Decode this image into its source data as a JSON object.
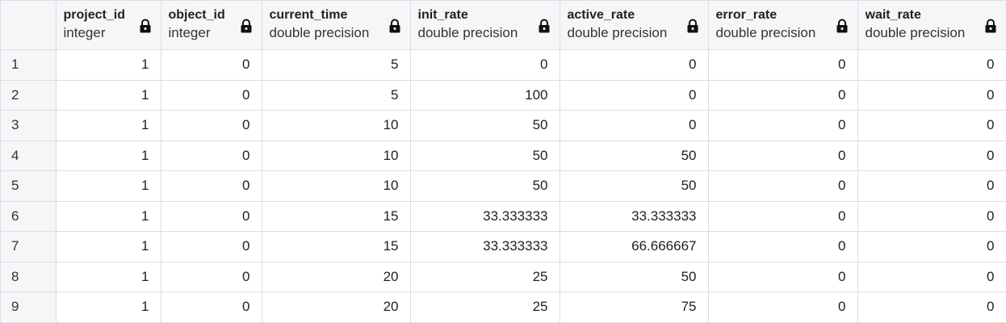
{
  "columns": [
    {
      "name": "project_id",
      "type": "integer"
    },
    {
      "name": "object_id",
      "type": "integer"
    },
    {
      "name": "current_time",
      "type": "double precision"
    },
    {
      "name": "init_rate",
      "type": "double precision"
    },
    {
      "name": "active_rate",
      "type": "double precision"
    },
    {
      "name": "error_rate",
      "type": "double precision"
    },
    {
      "name": "wait_rate",
      "type": "double precision"
    }
  ],
  "rows": [
    {
      "num": "1",
      "cells": [
        "1",
        "0",
        "5",
        "0",
        "0",
        "0",
        "0"
      ]
    },
    {
      "num": "2",
      "cells": [
        "1",
        "0",
        "5",
        "100",
        "0",
        "0",
        "0"
      ]
    },
    {
      "num": "3",
      "cells": [
        "1",
        "0",
        "10",
        "50",
        "0",
        "0",
        "0"
      ]
    },
    {
      "num": "4",
      "cells": [
        "1",
        "0",
        "10",
        "50",
        "50",
        "0",
        "0"
      ]
    },
    {
      "num": "5",
      "cells": [
        "1",
        "0",
        "10",
        "50",
        "50",
        "0",
        "0"
      ]
    },
    {
      "num": "6",
      "cells": [
        "1",
        "0",
        "15",
        "33.333333",
        "33.333333",
        "0",
        "0"
      ]
    },
    {
      "num": "7",
      "cells": [
        "1",
        "0",
        "15",
        "33.333333",
        "66.666667",
        "0",
        "0"
      ]
    },
    {
      "num": "8",
      "cells": [
        "1",
        "0",
        "20",
        "25",
        "50",
        "0",
        "0"
      ]
    },
    {
      "num": "9",
      "cells": [
        "1",
        "0",
        "20",
        "25",
        "75",
        "0",
        "0"
      ]
    }
  ],
  "icons": {
    "column_lock": "lock-icon"
  }
}
